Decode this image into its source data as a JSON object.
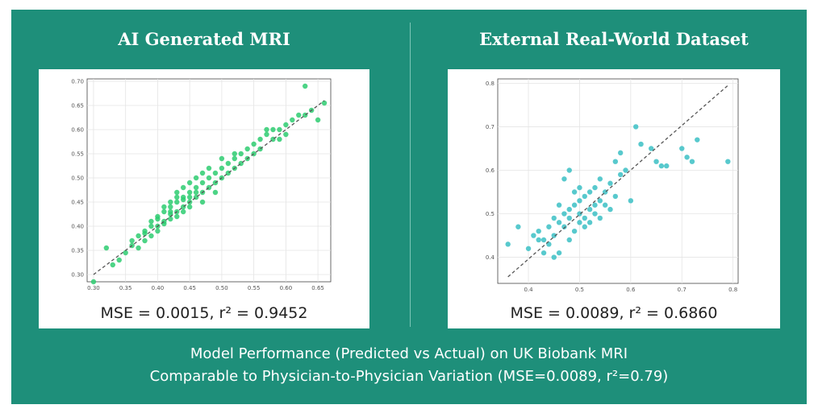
{
  "left_heading": "AI Generated MRI",
  "right_heading": "External Real-World Dataset",
  "left_metric": "MSE = 0.0015, r² = 0.9452",
  "right_metric": "MSE = 0.0089, r² = 0.6860",
  "footer_line1": "Model Performance (Predicted vs Actual) on UK Biobank MRI",
  "footer_line2": "Comparable to Physician-to-Physician Variation (MSE=0.0089, r²=0.79)",
  "colors": {
    "background": "#1e8f7a",
    "left_points": "#2ecc71",
    "right_points": "#3bbfc4",
    "identity_line": "#555555"
  },
  "chart_data": [
    {
      "type": "scatter",
      "title": "",
      "xlabel": "",
      "ylabel": "",
      "xlim": [
        0.29,
        0.67
      ],
      "ylim": [
        0.285,
        0.705
      ],
      "xticks": [
        0.3,
        0.35,
        0.4,
        0.45,
        0.5,
        0.55,
        0.6,
        0.65
      ],
      "yticks": [
        0.3,
        0.35,
        0.4,
        0.45,
        0.5,
        0.55,
        0.6,
        0.65,
        0.7
      ],
      "tick_decimals": 2,
      "grid": true,
      "identity_line": [
        [
          0.3,
          0.3
        ],
        [
          0.66,
          0.66
        ]
      ],
      "x": [
        0.3,
        0.32,
        0.33,
        0.34,
        0.35,
        0.36,
        0.36,
        0.37,
        0.37,
        0.38,
        0.38,
        0.38,
        0.39,
        0.39,
        0.39,
        0.4,
        0.4,
        0.4,
        0.4,
        0.41,
        0.41,
        0.41,
        0.41,
        0.42,
        0.42,
        0.42,
        0.42,
        0.42,
        0.43,
        0.43,
        0.43,
        0.43,
        0.43,
        0.44,
        0.44,
        0.44,
        0.44,
        0.44,
        0.45,
        0.45,
        0.45,
        0.45,
        0.45,
        0.46,
        0.46,
        0.46,
        0.46,
        0.47,
        0.47,
        0.47,
        0.47,
        0.48,
        0.48,
        0.48,
        0.49,
        0.49,
        0.49,
        0.5,
        0.5,
        0.5,
        0.51,
        0.51,
        0.52,
        0.52,
        0.52,
        0.53,
        0.53,
        0.54,
        0.54,
        0.55,
        0.55,
        0.56,
        0.56,
        0.57,
        0.57,
        0.58,
        0.58,
        0.59,
        0.59,
        0.6,
        0.6,
        0.61,
        0.62,
        0.63,
        0.63,
        0.64,
        0.65,
        0.66
      ],
      "y": [
        0.285,
        0.355,
        0.32,
        0.33,
        0.345,
        0.36,
        0.37,
        0.38,
        0.355,
        0.39,
        0.37,
        0.385,
        0.4,
        0.38,
        0.41,
        0.42,
        0.4,
        0.415,
        0.39,
        0.43,
        0.41,
        0.44,
        0.405,
        0.44,
        0.425,
        0.45,
        0.415,
        0.43,
        0.45,
        0.46,
        0.43,
        0.42,
        0.47,
        0.46,
        0.44,
        0.48,
        0.455,
        0.43,
        0.47,
        0.45,
        0.49,
        0.44,
        0.46,
        0.48,
        0.46,
        0.5,
        0.47,
        0.49,
        0.47,
        0.51,
        0.45,
        0.5,
        0.48,
        0.52,
        0.51,
        0.49,
        0.47,
        0.52,
        0.5,
        0.54,
        0.53,
        0.51,
        0.54,
        0.52,
        0.55,
        0.55,
        0.53,
        0.56,
        0.54,
        0.57,
        0.55,
        0.58,
        0.56,
        0.59,
        0.6,
        0.6,
        0.58,
        0.58,
        0.6,
        0.61,
        0.59,
        0.62,
        0.63,
        0.69,
        0.63,
        0.64,
        0.62,
        0.655
      ]
    },
    {
      "type": "scatter",
      "title": "",
      "xlabel": "",
      "ylabel": "",
      "xlim": [
        0.34,
        0.81
      ],
      "ylim": [
        0.34,
        0.81
      ],
      "xticks": [
        0.4,
        0.5,
        0.6,
        0.7,
        0.8
      ],
      "yticks": [
        0.4,
        0.5,
        0.6,
        0.7,
        0.8
      ],
      "tick_decimals": 1,
      "grid": true,
      "identity_line": [
        [
          0.36,
          0.355
        ],
        [
          0.79,
          0.795
        ]
      ],
      "x": [
        0.36,
        0.38,
        0.4,
        0.41,
        0.42,
        0.42,
        0.43,
        0.43,
        0.44,
        0.44,
        0.45,
        0.45,
        0.45,
        0.46,
        0.46,
        0.46,
        0.47,
        0.47,
        0.47,
        0.48,
        0.48,
        0.48,
        0.48,
        0.49,
        0.49,
        0.49,
        0.5,
        0.5,
        0.5,
        0.5,
        0.51,
        0.51,
        0.51,
        0.52,
        0.52,
        0.52,
        0.53,
        0.53,
        0.53,
        0.54,
        0.54,
        0.54,
        0.55,
        0.55,
        0.56,
        0.56,
        0.57,
        0.57,
        0.58,
        0.58,
        0.59,
        0.6,
        0.61,
        0.62,
        0.64,
        0.65,
        0.66,
        0.67,
        0.7,
        0.71,
        0.72,
        0.73,
        0.79
      ],
      "y": [
        0.43,
        0.47,
        0.42,
        0.45,
        0.44,
        0.46,
        0.41,
        0.44,
        0.47,
        0.43,
        0.4,
        0.45,
        0.49,
        0.41,
        0.48,
        0.52,
        0.47,
        0.5,
        0.58,
        0.44,
        0.49,
        0.51,
        0.6,
        0.46,
        0.52,
        0.55,
        0.48,
        0.5,
        0.53,
        0.56,
        0.49,
        0.54,
        0.47,
        0.51,
        0.48,
        0.55,
        0.52,
        0.5,
        0.56,
        0.53,
        0.49,
        0.58,
        0.52,
        0.55,
        0.51,
        0.57,
        0.54,
        0.62,
        0.59,
        0.64,
        0.6,
        0.53,
        0.7,
        0.66,
        0.65,
        0.62,
        0.61,
        0.61,
        0.65,
        0.63,
        0.62,
        0.67,
        0.62
      ]
    }
  ]
}
